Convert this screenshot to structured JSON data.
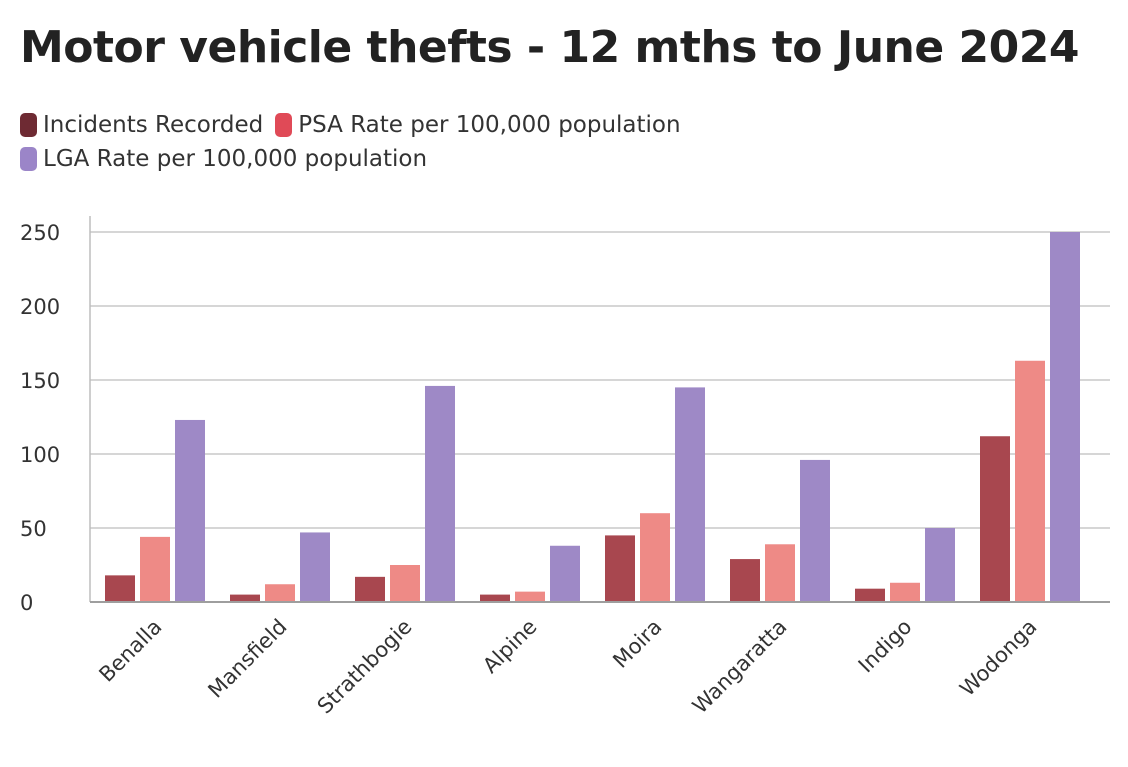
{
  "chart_data": {
    "type": "bar",
    "title": "Motor vehicle thefts - 12 mths to June 2024",
    "categories": [
      "Benalla",
      "Mansfield",
      "Strathbogie",
      "Alpine",
      "Moira",
      "Wangaratta",
      "Indigo",
      "Wodonga"
    ],
    "series": [
      {
        "name": "Incidents Recorded",
        "color": "#a8474f",
        "legend_color": "#6e2a33",
        "values": [
          18,
          5,
          17,
          5,
          45,
          29,
          9,
          112
        ]
      },
      {
        "name": "PSA Rate per 100,000 population",
        "color": "#ee8a86",
        "legend_color": "#e04a57",
        "values": [
          44,
          12,
          25,
          7,
          60,
          39,
          13,
          163
        ]
      },
      {
        "name": "LGA Rate per 100,000 population",
        "color": "#9e89c6",
        "legend_color": "#9b85c8",
        "values": [
          123,
          47,
          146,
          38,
          145,
          96,
          50,
          250
        ]
      }
    ],
    "yticks": [
      0,
      50,
      100,
      150,
      200,
      250
    ],
    "ylim": [
      0,
      250
    ],
    "grid": true,
    "legend_position": "top-left"
  }
}
